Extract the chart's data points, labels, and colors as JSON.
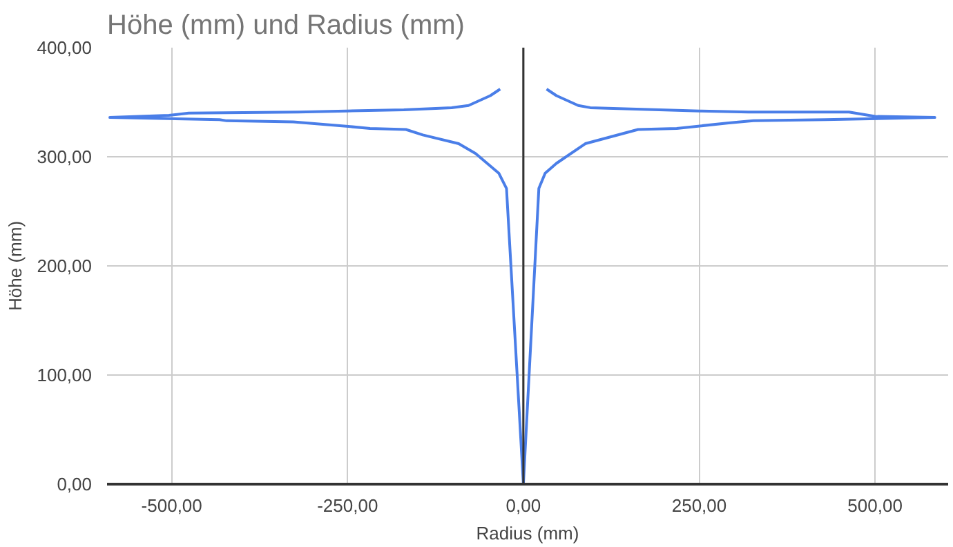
{
  "chart_data": {
    "type": "line",
    "title": "Höhe (mm) und Radius (mm)",
    "xlabel": "Radius (mm)",
    "ylabel": "Höhe (mm)",
    "xlim": [
      -592,
      604
    ],
    "ylim": [
      0,
      400
    ],
    "xticks": [
      {
        "value": -500,
        "label": "-500,00"
      },
      {
        "value": -250,
        "label": "-250,00"
      },
      {
        "value": 0,
        "label": "0,00"
      },
      {
        "value": 250,
        "label": "250,00"
      },
      {
        "value": 500,
        "label": "500,00"
      }
    ],
    "yticks": [
      {
        "value": 0,
        "label": "0,00"
      },
      {
        "value": 100,
        "label": "100,00"
      },
      {
        "value": 200,
        "label": "200,00"
      },
      {
        "value": 300,
        "label": "300,00"
      },
      {
        "value": 400,
        "label": "400,00"
      }
    ],
    "grid": true,
    "marker": "none",
    "line_style": "solid",
    "ref_lines": [
      {
        "axis": "x",
        "value": 0,
        "color": "#333333"
      }
    ],
    "series": [
      {
        "color": "#4a7ee8",
        "x": [
          -33,
          -47,
          -78,
          -102,
          -170,
          -252,
          -320,
          -476,
          -504,
          -588,
          -432,
          -422,
          -327,
          -252,
          -218,
          -167,
          -143,
          -92,
          -68,
          -35,
          -24,
          0,
          22,
          31,
          47,
          88,
          163,
          218,
          292,
          327,
          429,
          585,
          500,
          463,
          320,
          251,
          95,
          78,
          47,
          33
        ],
        "values": [
          362,
          356,
          347,
          345,
          343,
          342,
          341,
          340,
          338,
          336,
          334,
          333,
          332,
          328,
          326,
          325,
          320,
          312,
          303,
          285,
          271,
          0,
          271,
          285,
          294,
          312,
          325,
          326,
          331,
          333,
          334,
          336,
          337,
          341,
          341,
          342,
          345,
          347,
          356,
          362
        ]
      }
    ]
  }
}
